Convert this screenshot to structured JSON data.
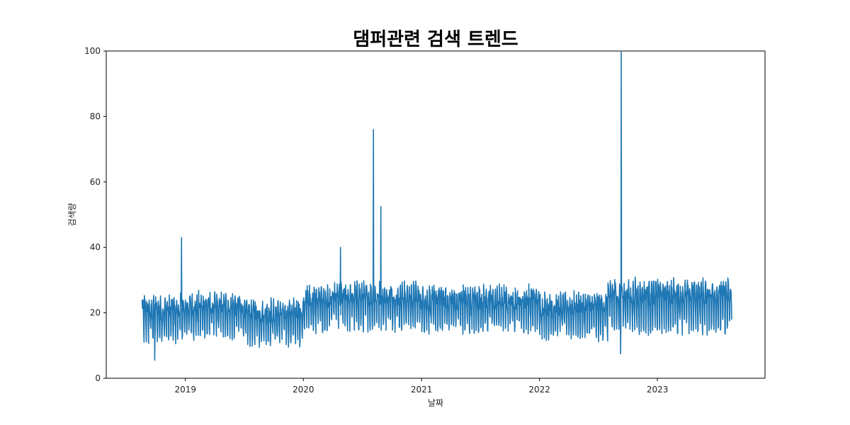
{
  "chart_data": {
    "type": "line",
    "title": "댐퍼관련 검색 트렌드",
    "xlabel": "날짜",
    "ylabel": "검색량",
    "x_start": "2018-08-20",
    "x_end": "2023-08-20",
    "xlim": [
      "2018-05-01",
      "2023-11-30"
    ],
    "ylim": [
      0,
      100
    ],
    "y_ticks": [
      0,
      20,
      40,
      60,
      80,
      100
    ],
    "x_ticks": [
      "2019",
      "2020",
      "2021",
      "2022",
      "2023"
    ],
    "grid": false,
    "legend": "none",
    "series": [
      {
        "color": "#1f77b4",
        "segments": [
          {
            "from": "2018-08-20",
            "to": "2019-01-01",
            "base": 18,
            "amp": 5,
            "noise": 3
          },
          {
            "from": "2019-01-01",
            "to": "2019-07-01",
            "base": 19,
            "amp": 5,
            "noise": 3
          },
          {
            "from": "2019-07-01",
            "to": "2020-01-01",
            "base": 17,
            "amp": 5,
            "noise": 3
          },
          {
            "from": "2020-01-01",
            "to": "2020-04-01",
            "base": 21,
            "amp": 5,
            "noise": 3
          },
          {
            "from": "2020-04-01",
            "to": "2020-12-31",
            "base": 22,
            "amp": 5,
            "noise": 3
          },
          {
            "from": "2020-12-31",
            "to": "2021-12-31",
            "base": 21,
            "amp": 5,
            "noise": 3
          },
          {
            "from": "2021-12-31",
            "to": "2022-08-01",
            "base": 19,
            "amp": 5,
            "noise": 3
          },
          {
            "from": "2022-08-01",
            "to": "2023-08-20",
            "base": 22,
            "amp": 6,
            "noise": 3
          }
        ],
        "peaks": [
          {
            "date": "2018-12-20",
            "value": 43
          },
          {
            "date": "2020-04-25",
            "value": 40
          },
          {
            "date": "2020-08-05",
            "value": 76
          },
          {
            "date": "2020-08-28",
            "value": 52.5
          },
          {
            "date": "2022-09-11",
            "value": 100
          },
          {
            "date": "2018-09-28",
            "value": 5.5
          },
          {
            "date": "2022-09-09",
            "value": 7.5
          }
        ]
      }
    ]
  }
}
